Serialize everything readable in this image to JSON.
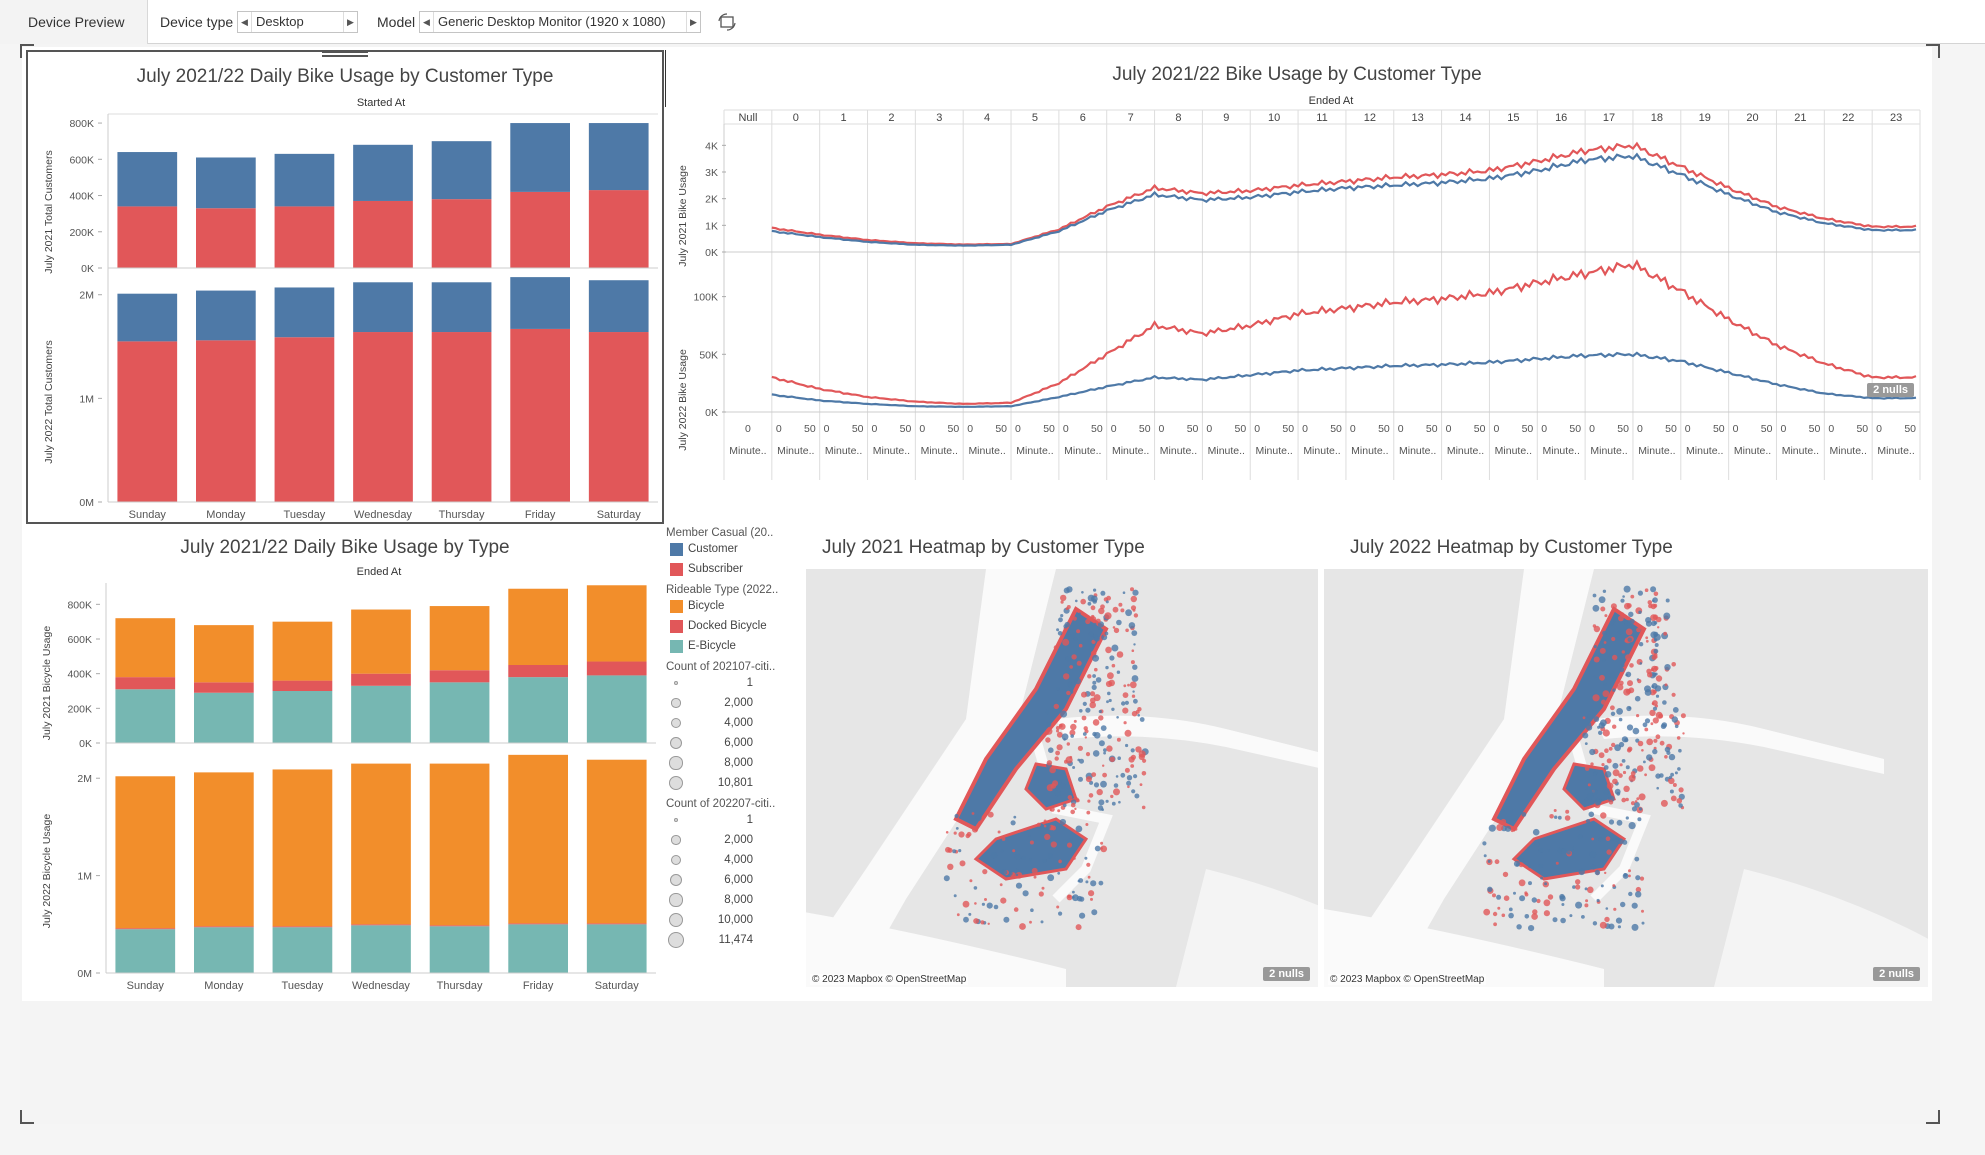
{
  "topbar": {
    "tab_label": "Device Preview",
    "device_type_label": "Device type",
    "device_type_value": "Desktop",
    "model_label": "Model",
    "model_value": "Generic Desktop Monitor (1920 x 1080)"
  },
  "colors": {
    "customer": "#4e79a7",
    "subscriber": "#e15759",
    "bicycle": "#f28e2b",
    "docked": "#e15759",
    "ebicycle": "#76b7b2"
  },
  "daily_customer": {
    "title": "July 2021/22 Daily Bike Usage by Customer Type",
    "header": "Started At",
    "y1_label": "July 2021 Total Customers",
    "y2_label": "July 2022 Total Customers",
    "y1_ticks": [
      "800K",
      "600K",
      "400K",
      "200K",
      "0K"
    ],
    "y2_ticks": [
      "2M",
      "1M",
      "0M"
    ],
    "days": [
      "Sunday",
      "Monday",
      "Tuesday",
      "Wednesday",
      "Thursday",
      "Friday",
      "Saturday"
    ]
  },
  "hourly": {
    "title": "July 2021/22 Bike Usage by Customer Type",
    "header": "Ended At",
    "hours": [
      "Null",
      "0",
      "1",
      "2",
      "3",
      "4",
      "5",
      "6",
      "7",
      "8",
      "9",
      "10",
      "11",
      "12",
      "13",
      "14",
      "15",
      "16",
      "17",
      "18",
      "19",
      "20",
      "21",
      "22",
      "23"
    ],
    "y1_label": "July 2021 Bike Usage",
    "y2_label": "July 2022 Bike Usage",
    "y1_ticks": [
      "4K",
      "3K",
      "2K",
      "1K",
      "0K"
    ],
    "y2_ticks": [
      "100K",
      "50K",
      "0K"
    ],
    "minute_first": "0",
    "minute_tick_a": "0",
    "minute_tick_b": "50",
    "minute_label": "Minute..",
    "nulls": "2 nulls"
  },
  "daily_type": {
    "title": "July 2021/22 Daily Bike Usage by Type",
    "header": "Ended At",
    "y1_label": "July 2021 Bicycle Usage",
    "y2_label": "July 2022 Bicycle Usage",
    "y1_ticks": [
      "800K",
      "600K",
      "400K",
      "200K",
      "0K"
    ],
    "y2_ticks": [
      "2M",
      "1M",
      "0M"
    ],
    "days": [
      "Sunday",
      "Monday",
      "Tuesday",
      "Wednesday",
      "Thursday",
      "Friday",
      "Saturday"
    ]
  },
  "legend": {
    "member_title": "Member Casual (20..",
    "member_items": [
      "Customer",
      "Subscriber"
    ],
    "rideable_title": "Rideable Type (2022..",
    "rideable_items": [
      "Bicycle",
      "Docked Bicycle",
      "E-Bicycle"
    ],
    "count1_title": "Count of 202107-citi..",
    "count1_items": [
      "1",
      "2,000",
      "4,000",
      "6,000",
      "8,000",
      "10,801"
    ],
    "count2_title": "Count of 202207-citi..",
    "count2_items": [
      "1",
      "2,000",
      "4,000",
      "6,000",
      "8,000",
      "10,000",
      "11,474"
    ]
  },
  "map2021": {
    "title": "July 2021 Heatmap by Customer Type",
    "attribution": "© 2023 Mapbox © OpenStreetMap",
    "nulls": "2 nulls"
  },
  "map2022": {
    "title": "July 2022 Heatmap by Customer Type",
    "attribution": "© 2023 Mapbox © OpenStreetMap",
    "nulls": "2 nulls"
  },
  "chart_data": [
    {
      "type": "bar",
      "title": "July 2021/22 Daily Bike Usage by Customer Type",
      "xlabel": "Started At",
      "ylabel": "July 2021 Total Customers",
      "categories": [
        "Sunday",
        "Monday",
        "Tuesday",
        "Wednesday",
        "Thursday",
        "Friday",
        "Saturday"
      ],
      "ylim": [
        0,
        850000
      ],
      "stacked": true,
      "series": [
        {
          "name": "Subscriber",
          "values": [
            340000,
            330000,
            340000,
            370000,
            380000,
            420000,
            430000
          ]
        },
        {
          "name": "Customer",
          "values": [
            300000,
            280000,
            290000,
            310000,
            320000,
            380000,
            370000
          ]
        }
      ]
    },
    {
      "type": "bar",
      "title": "July 2021/22 Daily Bike Usage by Customer Type",
      "xlabel": "Started At",
      "ylabel": "July 2022 Total Customers",
      "categories": [
        "Sunday",
        "Monday",
        "Tuesday",
        "Wednesday",
        "Thursday",
        "Friday",
        "Saturday"
      ],
      "ylim": [
        0,
        2200000
      ],
      "stacked": true,
      "series": [
        {
          "name": "Subscriber",
          "values": [
            1550000,
            1560000,
            1590000,
            1640000,
            1640000,
            1670000,
            1640000
          ]
        },
        {
          "name": "Customer",
          "values": [
            460000,
            480000,
            480000,
            480000,
            480000,
            500000,
            500000
          ]
        }
      ]
    },
    {
      "type": "line",
      "title": "July 2021/22 Bike Usage by Customer Type",
      "xlabel": "Ended At",
      "ylabel": "July 2021 Bike Usage",
      "x": [
        "0",
        "1",
        "2",
        "3",
        "4",
        "5",
        "6",
        "7",
        "8",
        "9",
        "10",
        "11",
        "12",
        "13",
        "14",
        "15",
        "16",
        "17",
        "18",
        "19",
        "20",
        "21",
        "22",
        "23"
      ],
      "ylim": [
        0,
        4500
      ],
      "series": [
        {
          "name": "Subscriber",
          "values": [
            900,
            650,
            450,
            330,
            280,
            300,
            850,
            1700,
            2400,
            2200,
            2300,
            2500,
            2650,
            2800,
            2900,
            3050,
            3400,
            3800,
            4000,
            3200,
            2400,
            1700,
            1250,
            950
          ]
        },
        {
          "name": "Customer",
          "values": [
            780,
            560,
            380,
            270,
            240,
            270,
            780,
            1550,
            2150,
            1950,
            2050,
            2250,
            2400,
            2500,
            2600,
            2750,
            3050,
            3450,
            3600,
            2900,
            2150,
            1500,
            1080,
            820
          ]
        }
      ]
    },
    {
      "type": "line",
      "title": "July 2021/22 Bike Usage by Customer Type",
      "xlabel": "Ended At",
      "ylabel": "July 2022 Bike Usage",
      "x": [
        "0",
        "1",
        "2",
        "3",
        "4",
        "5",
        "6",
        "7",
        "8",
        "9",
        "10",
        "11",
        "12",
        "13",
        "14",
        "15",
        "16",
        "17",
        "18",
        "19",
        "20",
        "21",
        "22",
        "23"
      ],
      "ylim": [
        0,
        130000
      ],
      "series": [
        {
          "name": "Subscriber",
          "values": [
            30000,
            20000,
            13000,
            9000,
            7000,
            8000,
            25000,
            50000,
            75000,
            68000,
            75000,
            85000,
            90000,
            95000,
            98000,
            103000,
            112000,
            120000,
            128000,
            105000,
            80000,
            58000,
            42000,
            30000
          ]
        },
        {
          "name": "Customer",
          "values": [
            15000,
            10000,
            7000,
            5000,
            4500,
            5000,
            13000,
            22000,
            30000,
            28000,
            32000,
            36000,
            38000,
            40000,
            41000,
            43000,
            46000,
            49000,
            50000,
            44000,
            34000,
            24000,
            16000,
            12000
          ]
        }
      ]
    },
    {
      "type": "bar",
      "title": "July 2021/22 Daily Bike Usage by Type",
      "xlabel": "Ended At",
      "ylabel": "July 2021 Bicycle Usage",
      "categories": [
        "Sunday",
        "Monday",
        "Tuesday",
        "Wednesday",
        "Thursday",
        "Friday",
        "Saturday"
      ],
      "ylim": [
        0,
        900000
      ],
      "stacked": true,
      "series": [
        {
          "name": "E-Bicycle",
          "values": [
            310000,
            290000,
            300000,
            330000,
            350000,
            380000,
            390000
          ]
        },
        {
          "name": "Docked Bicycle",
          "values": [
            70000,
            60000,
            60000,
            70000,
            70000,
            70000,
            80000
          ]
        },
        {
          "name": "Bicycle",
          "values": [
            340000,
            330000,
            340000,
            370000,
            370000,
            440000,
            440000
          ]
        }
      ]
    },
    {
      "type": "bar",
      "title": "July 2021/22 Daily Bike Usage by Type",
      "xlabel": "Ended At",
      "ylabel": "July 2022 Bicycle Usage",
      "categories": [
        "Sunday",
        "Monday",
        "Tuesday",
        "Wednesday",
        "Thursday",
        "Friday",
        "Saturday"
      ],
      "ylim": [
        0,
        2300000
      ],
      "stacked": true,
      "series": [
        {
          "name": "E-Bicycle",
          "values": [
            450000,
            470000,
            470000,
            490000,
            480000,
            500000,
            500000
          ]
        },
        {
          "name": "Docked Bicycle",
          "values": [
            10000,
            10000,
            10000,
            10000,
            10000,
            10000,
            10000
          ]
        },
        {
          "name": "Bicycle",
          "values": [
            1560000,
            1580000,
            1610000,
            1650000,
            1660000,
            1730000,
            1680000
          ]
        }
      ]
    }
  ]
}
